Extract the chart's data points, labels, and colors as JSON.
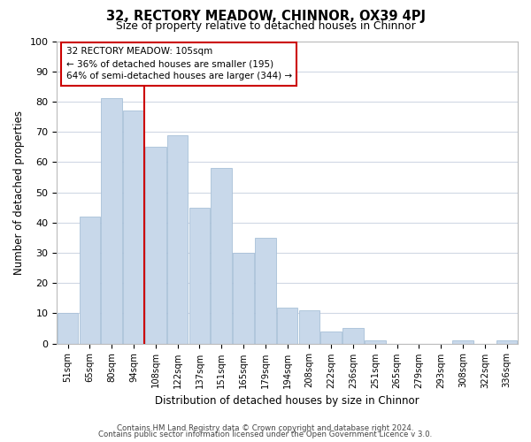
{
  "title": "32, RECTORY MEADOW, CHINNOR, OX39 4PJ",
  "subtitle": "Size of property relative to detached houses in Chinnor",
  "xlabel": "Distribution of detached houses by size in Chinnor",
  "ylabel": "Number of detached properties",
  "categories": [
    "51sqm",
    "65sqm",
    "80sqm",
    "94sqm",
    "108sqm",
    "122sqm",
    "137sqm",
    "151sqm",
    "165sqm",
    "179sqm",
    "194sqm",
    "208sqm",
    "222sqm",
    "236sqm",
    "251sqm",
    "265sqm",
    "279sqm",
    "293sqm",
    "308sqm",
    "322sqm",
    "336sqm"
  ],
  "values": [
    10,
    42,
    81,
    77,
    65,
    69,
    45,
    58,
    30,
    35,
    12,
    11,
    4,
    5,
    1,
    0,
    0,
    0,
    1,
    0,
    1
  ],
  "bar_face_color": "#c8d8ea",
  "bar_edge_color": "#a8c0d8",
  "highlight_line_index": 4,
  "highlight_line_color": "#cc0000",
  "ylim": [
    0,
    100
  ],
  "annotation_title": "32 RECTORY MEADOW: 105sqm",
  "annotation_line2": "← 36% of detached houses are smaller (195)",
  "annotation_line3": "64% of semi-detached houses are larger (344) →",
  "footer_line1": "Contains HM Land Registry data © Crown copyright and database right 2024.",
  "footer_line2": "Contains public sector information licensed under the Open Government Licence v 3.0.",
  "background_color": "#ffffff",
  "grid_color": "#d0d8e4"
}
